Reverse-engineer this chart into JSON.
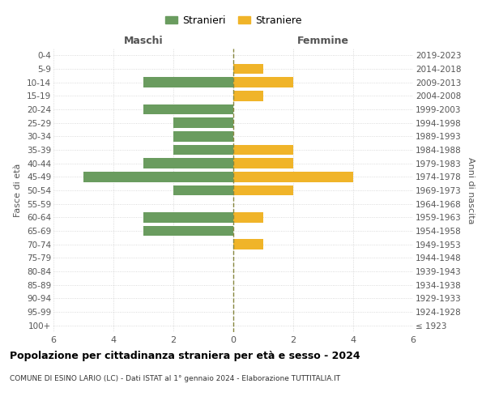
{
  "age_groups": [
    "100+",
    "95-99",
    "90-94",
    "85-89",
    "80-84",
    "75-79",
    "70-74",
    "65-69",
    "60-64",
    "55-59",
    "50-54",
    "45-49",
    "40-44",
    "35-39",
    "30-34",
    "25-29",
    "20-24",
    "15-19",
    "10-14",
    "5-9",
    "0-4"
  ],
  "birth_years": [
    "≤ 1923",
    "1924-1928",
    "1929-1933",
    "1934-1938",
    "1939-1943",
    "1944-1948",
    "1949-1953",
    "1954-1958",
    "1959-1963",
    "1964-1968",
    "1969-1973",
    "1974-1978",
    "1979-1983",
    "1984-1988",
    "1989-1993",
    "1994-1998",
    "1999-2003",
    "2004-2008",
    "2009-2013",
    "2014-2018",
    "2019-2023"
  ],
  "maschi": [
    0,
    0,
    0,
    0,
    0,
    0,
    0,
    3,
    3,
    0,
    2,
    5,
    3,
    2,
    2,
    2,
    3,
    0,
    3,
    0,
    0
  ],
  "femmine": [
    0,
    0,
    0,
    0,
    0,
    0,
    1,
    0,
    1,
    0,
    2,
    4,
    2,
    2,
    0,
    0,
    0,
    1,
    2,
    1,
    0
  ],
  "color_maschi": "#6a9c5f",
  "color_femmine": "#f0b429",
  "background_color": "#ffffff",
  "grid_color": "#d0d0d0",
  "center_line_color": "#888840",
  "title": "Popolazione per cittadinanza straniera per età e sesso - 2024",
  "subtitle": "COMUNE DI ESINO LARIO (LC) - Dati ISTAT al 1° gennaio 2024 - Elaborazione TUTTITALIA.IT",
  "xlabel_left": "Maschi",
  "xlabel_right": "Femmine",
  "ylabel_left": "Fasce di età",
  "ylabel_right": "Anni di nascita",
  "legend_maschi": "Stranieri",
  "legend_femmine": "Straniere",
  "xlim": 6,
  "bar_height": 0.75
}
